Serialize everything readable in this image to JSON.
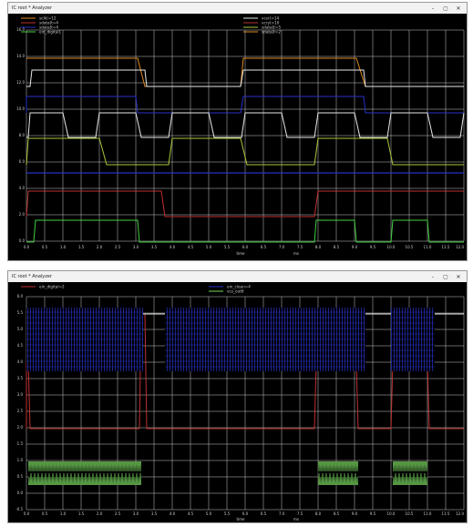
{
  "windows": [
    {
      "title": "IC root * Analyzer",
      "controls": {
        "minimize": "-",
        "maximize": "▢",
        "close": "✕"
      },
      "legend_left": [
        "sclk(=12",
        "sdata[t=4",
        "sdata[t=4",
        "ein_digital1"
      ],
      "legend_right": [
        "vcsr(=14",
        "vcry(=10",
        "sdata[t=5",
        "sdata[t=2"
      ],
      "y_ticks": [
        "16.0",
        "14.0",
        "12.0",
        "10.0",
        "8.0",
        "6.0",
        "4.0",
        "2.0",
        "0.0"
      ],
      "x_ticks": [
        "0.0",
        "0.5",
        "1.0",
        "1.5",
        "2.0",
        "2.5",
        "3.0",
        "3.5",
        "4.0",
        "4.5",
        "5.0",
        "5.5",
        "6.0",
        "6.5",
        "7.0",
        "7.5",
        "8.0",
        "8.5",
        "9.0",
        "9.5",
        "10.0",
        "10.5",
        "11.0",
        "11.5",
        "12.0"
      ],
      "x_label": "time",
      "x_unit": "ms"
    },
    {
      "title": "IC root * Analyzer",
      "controls": {
        "minimize": "-",
        "maximize": "▢",
        "close": "✕"
      },
      "legend_left": [
        "ein_digital=2"
      ],
      "legend_right": [
        "ein_clean=4",
        "vcs_out6"
      ],
      "y_ticks": [
        "6.0",
        "5.5",
        "5.0",
        "4.5",
        "4.0",
        "3.5",
        "3.0",
        "2.5",
        "2.0",
        "1.5",
        "1.0",
        "0.5",
        "0.0",
        "-0.5"
      ],
      "x_ticks": [
        "0.0",
        "0.5",
        "1.0",
        "1.5",
        "2.0",
        "2.5",
        "3.0",
        "3.5",
        "4.0",
        "4.5",
        "5.0",
        "5.5",
        "6.0",
        "6.5",
        "7.0",
        "7.5",
        "8.0",
        "8.5",
        "9.0",
        "9.5",
        "10.0",
        "10.5",
        "11.0",
        "11.5",
        "12.0"
      ],
      "x_label": "time",
      "x_unit": "ms"
    }
  ],
  "colors": {
    "background": "#000000",
    "grid": "#c8c8c8",
    "orange": "#e08a1e",
    "red": "#c03030",
    "green": "#40d040",
    "blue": "#2830c8",
    "white": "#e8e8e8",
    "yellowgreen": "#a8c838",
    "lightgreen": "#7ad860"
  }
}
